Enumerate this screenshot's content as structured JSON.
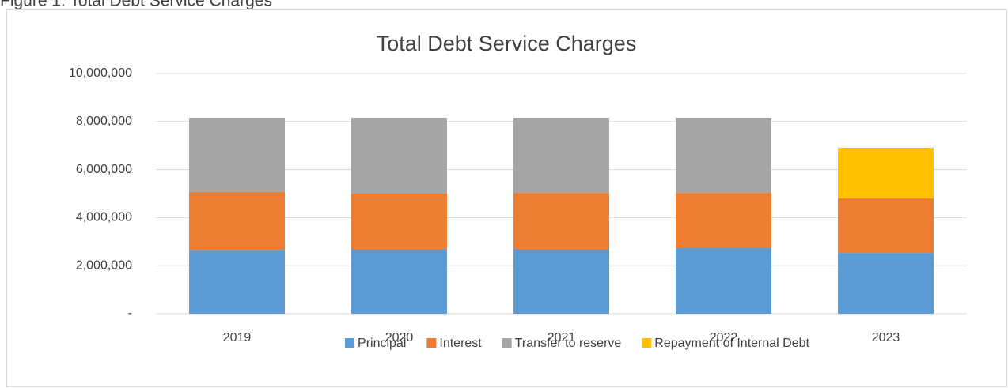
{
  "caption": "Figure 1: Total Debt Service Charges",
  "chart_data": {
    "type": "stacked_bar",
    "title": "Total Debt Service Charges",
    "categories": [
      "2019",
      "2020",
      "2021",
      "2022",
      "2023"
    ],
    "series": [
      {
        "name": "Principal",
        "color": "#5b9bd5",
        "values": [
          2660000,
          2700000,
          2700000,
          2730000,
          2530000
        ]
      },
      {
        "name": "Interest",
        "color": "#ed7d31",
        "values": [
          2410000,
          2300000,
          2330000,
          2300000,
          2270000
        ]
      },
      {
        "name": "Transfer to reserve",
        "color": "#a5a5a5",
        "values": [
          3090000,
          3160000,
          3130000,
          3130000,
          null
        ]
      },
      {
        "name": "Repayment of Internal Debt",
        "color": "#ffc000",
        "values": [
          null,
          null,
          null,
          null,
          2110000
        ]
      }
    ],
    "ylim": [
      0,
      10000000
    ],
    "yticks": [
      {
        "value": 0,
        "label": "-"
      },
      {
        "value": 2000000,
        "label": "2,000,000"
      },
      {
        "value": 4000000,
        "label": "4,000,000"
      },
      {
        "value": 6000000,
        "label": "6,000,000"
      },
      {
        "value": 8000000,
        "label": "8,000,000"
      },
      {
        "value": 10000000,
        "label": "10,000,000"
      }
    ],
    "grid": true,
    "legend": "bottom"
  }
}
